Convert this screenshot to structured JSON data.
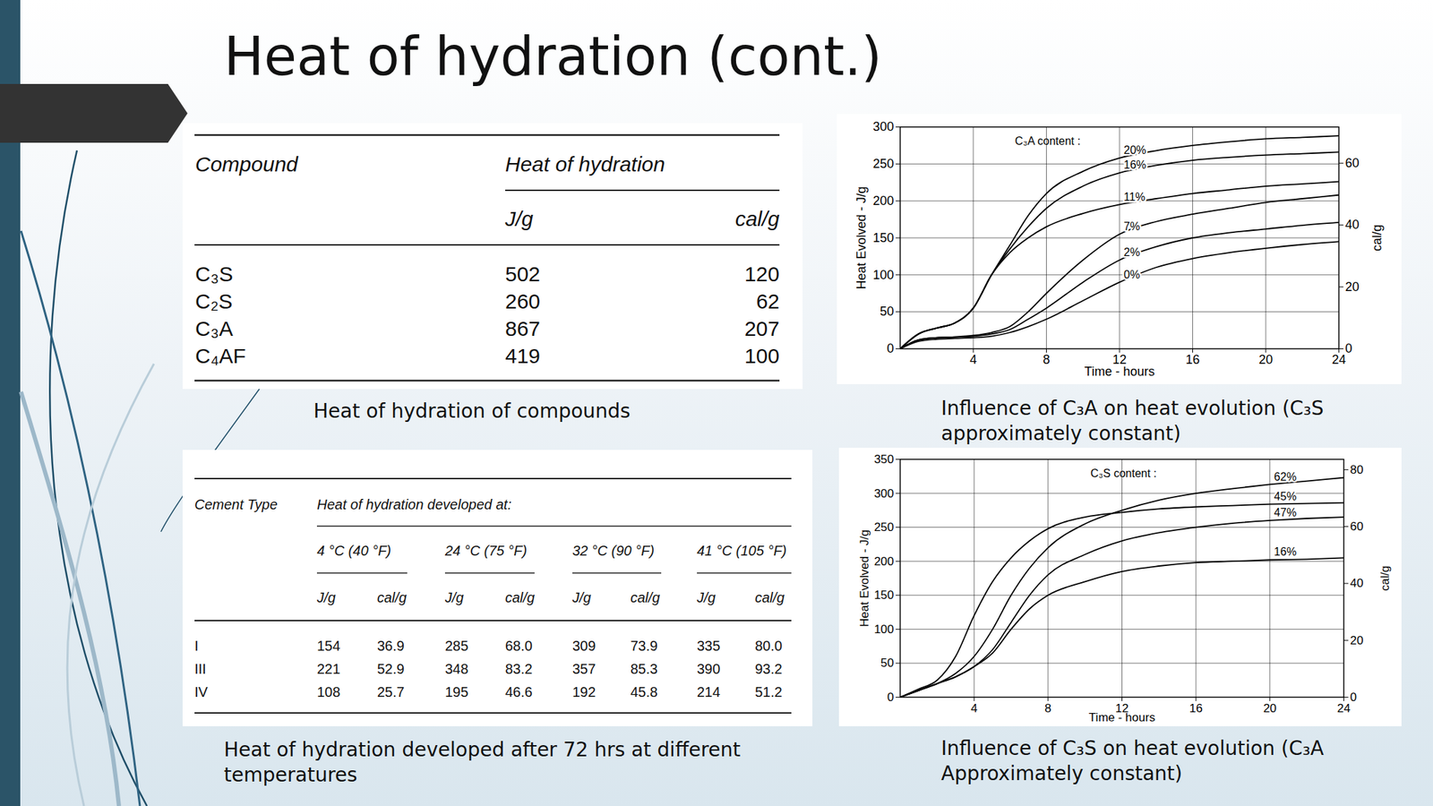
{
  "title": "Heat of hydration (cont.)",
  "tables": [
    {
      "caption": "Heat of hydration of compounds",
      "columns": [
        "Compound",
        "Heat of hydration"
      ],
      "units": [
        "J/g",
        "cal/g"
      ],
      "rows": [
        [
          "C₃S",
          "502",
          "120"
        ],
        [
          "C₂S",
          "260",
          "62"
        ],
        [
          "C₃A",
          "867",
          "207"
        ],
        [
          "C₄AF",
          "419",
          "100"
        ]
      ]
    },
    {
      "caption": "Heat of hydration developed after 72 hrs at different temperatures",
      "columns": [
        "Cement Type",
        "Heat of hydration developed at:"
      ],
      "temperatures": [
        "4 °C (40 °F)",
        "24 °C (75 °F)",
        "32 °C (90 °F)",
        "41 °C (105 °F)"
      ],
      "units": [
        "J/g",
        "cal/g"
      ],
      "rows": [
        [
          "I",
          "154",
          "36.9",
          "285",
          "68.0",
          "309",
          "73.9",
          "335",
          "80.0"
        ],
        [
          "III",
          "221",
          "52.9",
          "348",
          "83.2",
          "357",
          "85.3",
          "390",
          "93.2"
        ],
        [
          "IV",
          "108",
          "25.7",
          "195",
          "46.6",
          "192",
          "45.8",
          "214",
          "51.2"
        ]
      ]
    }
  ],
  "chart_data": [
    {
      "type": "line",
      "title": "Influence of C₃A on heat evolution (C₃S approximately constant)",
      "xlabel": "Time - hours",
      "ylabel": "Heat Evolved - J/g",
      "y2label": "cal/g",
      "annotations": [
        "C₃A content :"
      ],
      "x": [
        0,
        1,
        2,
        3,
        4,
        5,
        6,
        7,
        8,
        10,
        12,
        14,
        16,
        18,
        20,
        22,
        24
      ],
      "series": [
        {
          "name": "20%",
          "color": "#000000",
          "values": [
            0,
            20,
            28,
            35,
            55,
            100,
            140,
            180,
            210,
            240,
            258,
            268,
            275,
            280,
            284,
            286,
            288
          ]
        },
        {
          "name": "16%",
          "color": "#000000",
          "values": [
            0,
            20,
            28,
            35,
            55,
            100,
            135,
            165,
            190,
            220,
            238,
            248,
            255,
            259,
            262,
            264,
            266
          ]
        },
        {
          "name": "11%",
          "color": "#000000",
          "values": [
            0,
            20,
            28,
            35,
            55,
            100,
            130,
            150,
            165,
            183,
            195,
            203,
            210,
            215,
            220,
            223,
            226
          ]
        },
        {
          "name": "7%",
          "color": "#000000",
          "values": [
            0,
            12,
            15,
            16,
            18,
            22,
            30,
            50,
            75,
            120,
            155,
            172,
            182,
            190,
            198,
            203,
            208
          ]
        },
        {
          "name": "2%",
          "color": "#000000",
          "values": [
            0,
            12,
            15,
            16,
            17,
            20,
            26,
            40,
            55,
            90,
            120,
            138,
            150,
            157,
            162,
            167,
            171
          ]
        },
        {
          "name": "0%",
          "color": "#000000",
          "values": [
            0,
            10,
            13,
            14,
            15,
            17,
            22,
            30,
            40,
            65,
            90,
            110,
            122,
            130,
            136,
            141,
            145
          ]
        }
      ],
      "xlim": [
        0,
        24
      ],
      "xticks": [
        4,
        8,
        12,
        16,
        20,
        24
      ],
      "ylim": [
        0,
        300
      ],
      "yticks": [
        0,
        50,
        100,
        150,
        200,
        250,
        300
      ],
      "y2lim": [
        0,
        71.7
      ],
      "y2ticks": [
        0,
        20,
        40,
        60
      ],
      "grid": true
    },
    {
      "type": "line",
      "title": "Influence of C₃S on heat evolution (C₃A Approximately constant)",
      "xlabel": "Time - hours",
      "ylabel": "Heat Evolved - J/g",
      "y2label": "cal/g",
      "annotations": [
        "C₃S content :"
      ],
      "x": [
        0,
        1,
        2,
        3,
        4,
        5,
        6,
        7,
        8,
        10,
        12,
        14,
        16,
        18,
        20,
        22,
        24
      ],
      "series": [
        {
          "name": "62%",
          "color": "#000000",
          "values": [
            0,
            10,
            20,
            35,
            60,
            100,
            150,
            190,
            220,
            255,
            275,
            290,
            300,
            307,
            313,
            318,
            323
          ]
        },
        {
          "name": "45%",
          "color": "#000000",
          "values": [
            0,
            12,
            25,
            60,
            120,
            170,
            205,
            230,
            248,
            265,
            272,
            277,
            280,
            282,
            284,
            285,
            286
          ]
        },
        {
          "name": "47%",
          "color": "#000000",
          "values": [
            0,
            10,
            20,
            30,
            45,
            70,
            110,
            150,
            180,
            210,
            230,
            242,
            250,
            256,
            260,
            263,
            265
          ]
        },
        {
          "name": "16%",
          "color": "#000000",
          "values": [
            0,
            10,
            20,
            30,
            45,
            65,
            100,
            130,
            150,
            170,
            185,
            193,
            198,
            200,
            202,
            203,
            205
          ]
        }
      ],
      "xlim": [
        0,
        24
      ],
      "xticks": [
        4,
        8,
        12,
        16,
        20,
        24
      ],
      "ylim": [
        0,
        350
      ],
      "yticks": [
        0,
        50,
        100,
        150,
        200,
        250,
        300,
        350
      ],
      "y2lim": [
        0,
        83.65
      ],
      "y2ticks": [
        0,
        20,
        40,
        60,
        80
      ],
      "grid": true
    }
  ]
}
